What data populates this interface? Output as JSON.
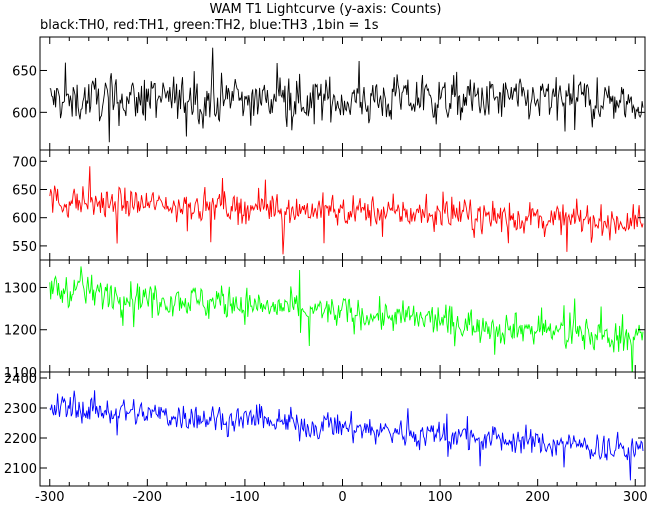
{
  "chart_data": {
    "type": "line",
    "title": "WAM T1 Lightcurve (y-axis: Counts)",
    "subtitle": "black:TH0, red:TH1, green:TH2, blue:TH3 ,1bin = 1s",
    "xlim": [
      -310,
      310
    ],
    "x_ticks": [
      -300,
      -200,
      -100,
      0,
      100,
      200,
      300
    ],
    "bin_seconds": 1,
    "grid": false,
    "panels": [
      {
        "name": "TH0",
        "color": "#000000",
        "ylim": [
          555,
          690
        ],
        "y_ticks": [
          600,
          650
        ],
        "x_start": -300,
        "x_end": 308,
        "trend": [
          [
            -300,
            615
          ],
          [
            300,
            615
          ]
        ],
        "noise": 22,
        "spike_prob": 0.03,
        "spike": 40
      },
      {
        "name": "TH1",
        "color": "#ff0000",
        "ylim": [
          525,
          720
        ],
        "y_ticks": [
          550,
          600,
          650,
          700
        ],
        "x_start": -300,
        "x_end": 308,
        "trend": [
          [
            -300,
            630
          ],
          [
            0,
            612
          ],
          [
            300,
            592
          ]
        ],
        "noise": 22,
        "spike_prob": 0.03,
        "spike": 45
      },
      {
        "name": "TH2",
        "color": "#00ff00",
        "ylim": [
          1100,
          1365
        ],
        "y_ticks": [
          1100,
          1200,
          1300
        ],
        "x_start": -300,
        "x_end": 308,
        "trend": [
          [
            -300,
            1298
          ],
          [
            0,
            1240
          ],
          [
            300,
            1180
          ]
        ],
        "noise": 30,
        "spike_prob": 0.03,
        "spike": 55
      },
      {
        "name": "TH3",
        "color": "#0000ff",
        "ylim": [
          2040,
          2420
        ],
        "y_ticks": [
          2100,
          2200,
          2300,
          2400
        ],
        "x_start": -300,
        "x_end": 308,
        "trend": [
          [
            -300,
            2305
          ],
          [
            0,
            2235
          ],
          [
            300,
            2160
          ]
        ],
        "noise": 38,
        "spike_prob": 0.03,
        "spike": 70
      }
    ]
  }
}
